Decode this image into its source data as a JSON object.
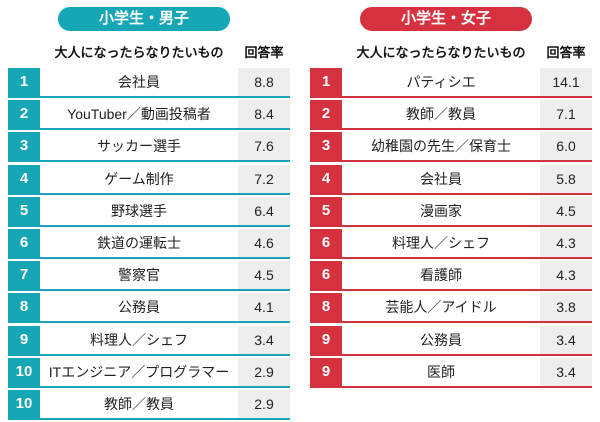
{
  "tables": [
    {
      "title": "小学生・男子",
      "headers": [
        "大人になったらなりたいもの",
        "回答率"
      ],
      "rows": [
        [
          "1",
          "会社員",
          "8.8"
        ],
        [
          "2",
          "YouTuber／動画投稿者",
          "8.4"
        ],
        [
          "3",
          "サッカー選手",
          "7.6"
        ],
        [
          "4",
          "ゲーム制作",
          "7.2"
        ],
        [
          "5",
          "野球選手",
          "6.4"
        ],
        [
          "6",
          "鉄道の運転士",
          "4.6"
        ],
        [
          "7",
          "警察官",
          "4.5"
        ],
        [
          "8",
          "公務員",
          "4.1"
        ],
        [
          "9",
          "料理人／シェフ",
          "3.4"
        ],
        [
          "10",
          "ITエンジニア／プログラマー",
          "2.9"
        ],
        [
          "10",
          "教師／教員",
          "2.9"
        ]
      ]
    },
    {
      "title": "小学生・女子",
      "headers": [
        "大人になったらなりたいもの",
        "回答率"
      ],
      "rows": [
        [
          "1",
          "パティシエ",
          "14.1"
        ],
        [
          "2",
          "教師／教員",
          "7.1"
        ],
        [
          "3",
          "幼稚園の先生／保育士",
          "6.0"
        ],
        [
          "4",
          "会社員",
          "5.8"
        ],
        [
          "5",
          "漫画家",
          "4.5"
        ],
        [
          "6",
          "料理人／シェフ",
          "4.3"
        ],
        [
          "6",
          "看護師",
          "4.3"
        ],
        [
          "8",
          "芸能人／アイドル",
          "3.8"
        ],
        [
          "9",
          "公務員",
          "3.4"
        ],
        [
          "9",
          "医師",
          "3.4"
        ]
      ]
    }
  ]
}
